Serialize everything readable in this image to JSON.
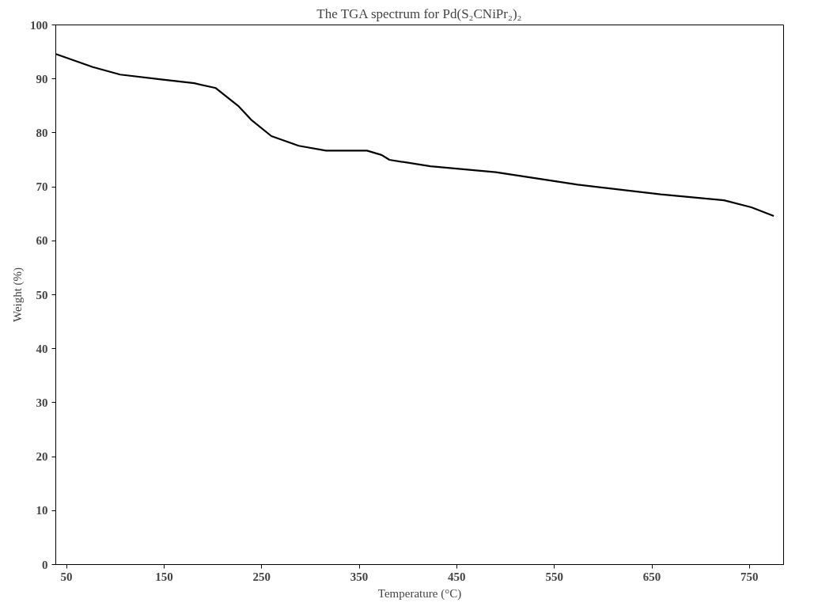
{
  "chart_data": {
    "type": "line",
    "title": "The TGA spectrum for Pd(S₂CNiPr₂)₂",
    "xlabel": "Temperature (°C)",
    "ylabel": "Weight (%)",
    "x": [
      39,
      77,
      105,
      147,
      181,
      203,
      226,
      240,
      260,
      288,
      316,
      358,
      373,
      381,
      423,
      490,
      574,
      659,
      724,
      752,
      775
    ],
    "series": [
      {
        "color": "#000000",
        "values": [
          94.6,
          92.2,
          90.8,
          89.9,
          89.2,
          88.3,
          85.0,
          82.3,
          79.4,
          77.6,
          76.7,
          76.7,
          75.9,
          75.0,
          73.8,
          72.7,
          70.4,
          68.6,
          67.5,
          66.2,
          64.6
        ]
      }
    ],
    "xlim": [
      39,
      785
    ],
    "ylim": [
      0,
      100
    ],
    "xticks": [
      50,
      150,
      250,
      350,
      450,
      550,
      650,
      750
    ],
    "yticks": [
      0,
      10,
      20,
      30,
      40,
      50,
      60,
      70,
      80,
      90,
      100
    ],
    "grid": false,
    "marker": "none",
    "line_style": "solid"
  }
}
